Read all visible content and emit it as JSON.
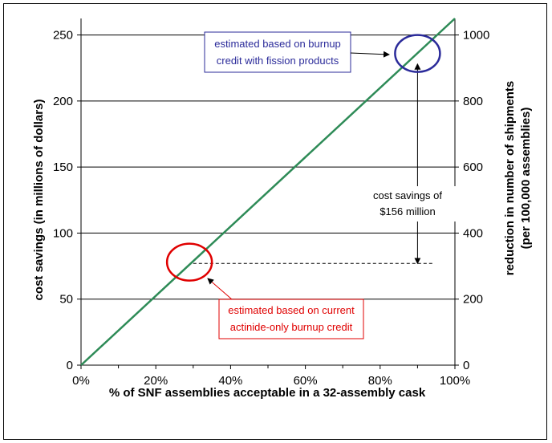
{
  "chart_data": {
    "type": "line",
    "x_tick_labels": [
      "0%",
      "20%",
      "40%",
      "60%",
      "80%",
      "100%"
    ],
    "y_tick_labels": [
      "0",
      "50",
      "100",
      "150",
      "200",
      "250"
    ],
    "y2_tick_labels": [
      "0",
      "200",
      "400",
      "600",
      "800",
      "1000"
    ],
    "xlim": [
      0,
      100
    ],
    "ylim": [
      0,
      262.5
    ],
    "y2lim": [
      0,
      1050
    ],
    "x_ticks": [
      0,
      20,
      40,
      60,
      80,
      100
    ],
    "y_ticks": [
      0,
      50,
      100,
      150,
      200,
      250
    ],
    "y2_ticks": [
      0,
      200,
      400,
      600,
      800,
      1000
    ],
    "xlabel": "% of SNF assemblies acceptable in a 32-assembly cask",
    "ylabel": "cost savings (in millions of dollars)",
    "y2label_line1": "reduction in number of shipments",
    "y2label_line2": "(per 100,000 assemblies)",
    "grid": "horizontal",
    "series": [
      {
        "x": [
          0,
          100
        ],
        "y": [
          0,
          262.5
        ],
        "color": "#2e8b57"
      }
    ],
    "reference_level": {
      "y": 77,
      "x_from": 30,
      "x_to": 94
    },
    "highlights": [
      {
        "id": "actinide",
        "x": 29,
        "y": 78,
        "color": "#e00000"
      },
      {
        "id": "fission",
        "x": 90,
        "y": 236,
        "color": "#2b2b9a"
      }
    ],
    "annotations": {
      "fission_box": {
        "lines": [
          "estimated based on burnup",
          "credit with fission products"
        ],
        "color": "#2b2b9a"
      },
      "actinide_box": {
        "lines": [
          "estimated based on current",
          "actinide-only burnup credit"
        ],
        "color": "#e00000"
      },
      "savings": {
        "lines": [
          "cost savings of",
          "$156 million"
        ],
        "x": 90,
        "y_from": 77,
        "y_to": 228
      }
    }
  }
}
